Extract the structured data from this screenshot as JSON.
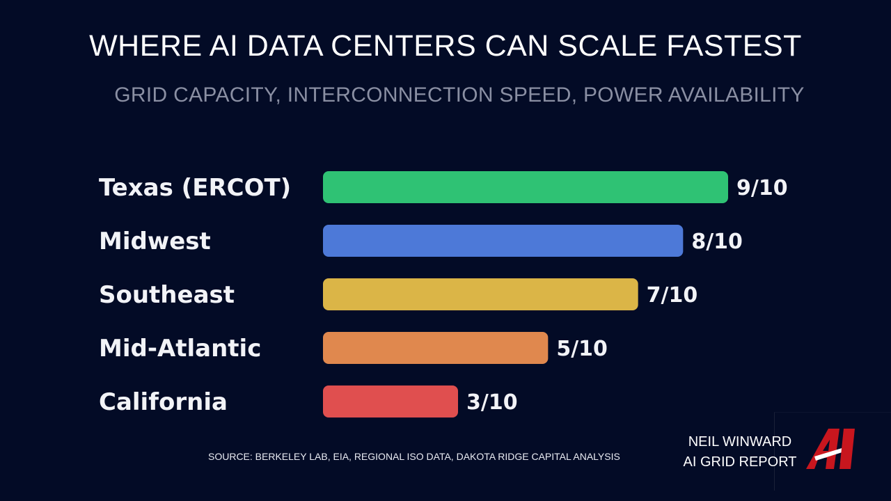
{
  "title": "WHERE AI DATA CENTERS CAN SCALE FASTEST",
  "subtitle": "GRID CAPACITY, INTERCONNECTION SPEED, POWER AVAILABILITY",
  "chart_data": {
    "type": "bar",
    "orientation": "horizontal",
    "title": "WHERE AI DATA CENTERS CAN SCALE FASTEST",
    "subtitle": "GRID CAPACITY, INTERCONNECTION SPEED, POWER AVAILABILITY",
    "categories": [
      "Texas (ERCOT)",
      "Midwest",
      "Southeast",
      "Mid-Atlantic",
      "California"
    ],
    "values": [
      9,
      8,
      7,
      5,
      3
    ],
    "value_labels": [
      "9/10",
      "8/10",
      "7/10",
      "5/10",
      "3/10"
    ],
    "colors": [
      "#2fc274",
      "#4d79d8",
      "#dbb547",
      "#e0884e",
      "#e04f4f"
    ],
    "xlim": [
      0,
      10
    ],
    "grid": false,
    "legend": "none"
  },
  "source": "SOURCE: BERKELEY LAB, EIA, REGIONAL ISO DATA, DAKOTA RIDGE CAPITAL ANALYSIS",
  "brand": {
    "line1": "NEIL WINWARD",
    "line2": "AI GRID REPORT",
    "logo_text": "AI",
    "logo_color": "#c8161e"
  }
}
